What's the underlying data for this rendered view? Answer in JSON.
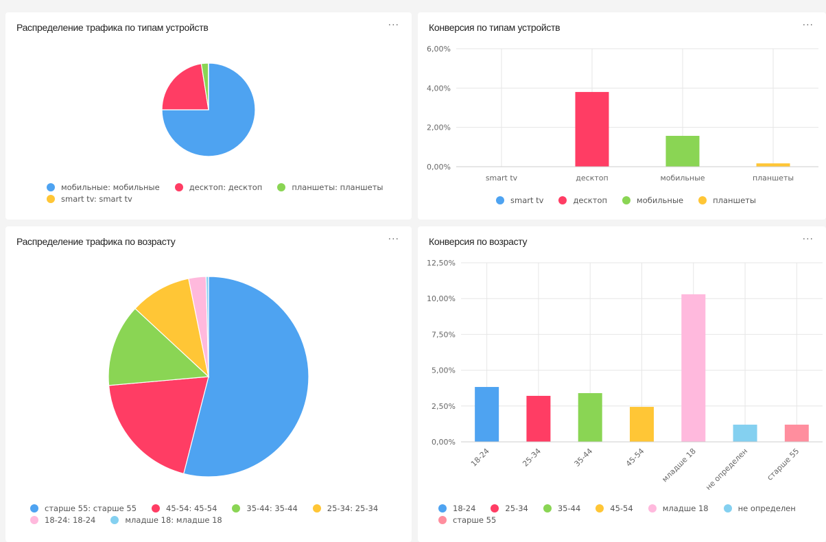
{
  "panels": {
    "device_traffic": {
      "title": "Распределение трафика по типам устройств",
      "more_label": "···"
    },
    "device_conversion": {
      "title": "Конверсия по типам устройств",
      "more_label": "···"
    },
    "age_traffic": {
      "title": "Распределение трафика по возрасту",
      "more_label": "···"
    },
    "age_conversion": {
      "title": "Конверсия по возрасту",
      "more_label": "···"
    }
  },
  "chart_data": [
    {
      "id": "device_traffic",
      "type": "pie",
      "title": "Распределение трафика по типам устройств",
      "unit": "percent of traffic (estimated)",
      "slices": [
        {
          "label": "мобильные: мобильные",
          "value": 75.0,
          "color": "#4ea3f1"
        },
        {
          "label": "десктоп: десктоп",
          "value": 22.5,
          "color": "#ff3d64"
        },
        {
          "label": "планшеты: планшеты",
          "value": 2.4,
          "color": "#8ad554"
        },
        {
          "label": "smart tv: smart tv",
          "value": 0.1,
          "color": "#ffc636"
        }
      ],
      "legend_position": "bottom"
    },
    {
      "id": "device_conversion",
      "type": "bar",
      "title": "Конверсия по типам устройств",
      "categories": [
        "smart tv",
        "десктоп",
        "мобильные",
        "планшеты"
      ],
      "values": [
        0.0,
        3.8,
        1.57,
        0.17
      ],
      "colors": [
        "#4ea3f1",
        "#ff3d64",
        "#8ad554",
        "#ffc636"
      ],
      "ylim": [
        0,
        6
      ],
      "yticks": [
        0,
        2,
        4,
        6
      ],
      "ytick_labels": [
        "0,00%",
        "2,00%",
        "4,00%",
        "6,00%"
      ],
      "xlabel": "",
      "ylabel": "",
      "grid": true,
      "legend": [
        "smart tv",
        "десктоп",
        "мобильные",
        "планшеты"
      ],
      "legend_position": "bottom"
    },
    {
      "id": "age_traffic",
      "type": "pie",
      "title": "Распределение трафика по возрасту",
      "unit": "percent of traffic (estimated)",
      "slices": [
        {
          "label": "старше 55: старше 55",
          "value": 54.0,
          "color": "#4ea3f1"
        },
        {
          "label": "45-54: 45-54",
          "value": 19.6,
          "color": "#ff3d64"
        },
        {
          "label": "35-44: 35-44",
          "value": 13.3,
          "color": "#8ad554"
        },
        {
          "label": "25-34: 25-34",
          "value": 9.9,
          "color": "#ffc636"
        },
        {
          "label": "18-24: 18-24",
          "value": 2.8,
          "color": "#ffb9dd"
        },
        {
          "label": "младше 18: младше 18",
          "value": 0.4,
          "color": "#84d0f0"
        }
      ],
      "legend_position": "bottom"
    },
    {
      "id": "age_conversion",
      "type": "bar",
      "title": "Конверсия по возрасту",
      "categories": [
        "18-24",
        "25-34",
        "35-44",
        "45-54",
        "младше 18",
        "не определен",
        "старше 55"
      ],
      "values": [
        3.83,
        3.21,
        3.4,
        2.44,
        10.3,
        1.2,
        1.2
      ],
      "colors": [
        "#4ea3f1",
        "#ff3d64",
        "#8ad554",
        "#ffc636",
        "#ffb9dd",
        "#84d0f0",
        "#ff8e9e"
      ],
      "ylim": [
        0,
        12.5
      ],
      "yticks": [
        0,
        2.5,
        5,
        7.5,
        10,
        12.5
      ],
      "ytick_labels": [
        "0,00%",
        "2,50%",
        "5,00%",
        "7,50%",
        "10,00%",
        "12,50%"
      ],
      "xlabel": "",
      "ylabel": "",
      "grid": true,
      "legend": [
        "18-24",
        "25-34",
        "35-44",
        "45-54",
        "младше 18",
        "не определен",
        "старше 55"
      ],
      "legend_position": "bottom"
    }
  ]
}
